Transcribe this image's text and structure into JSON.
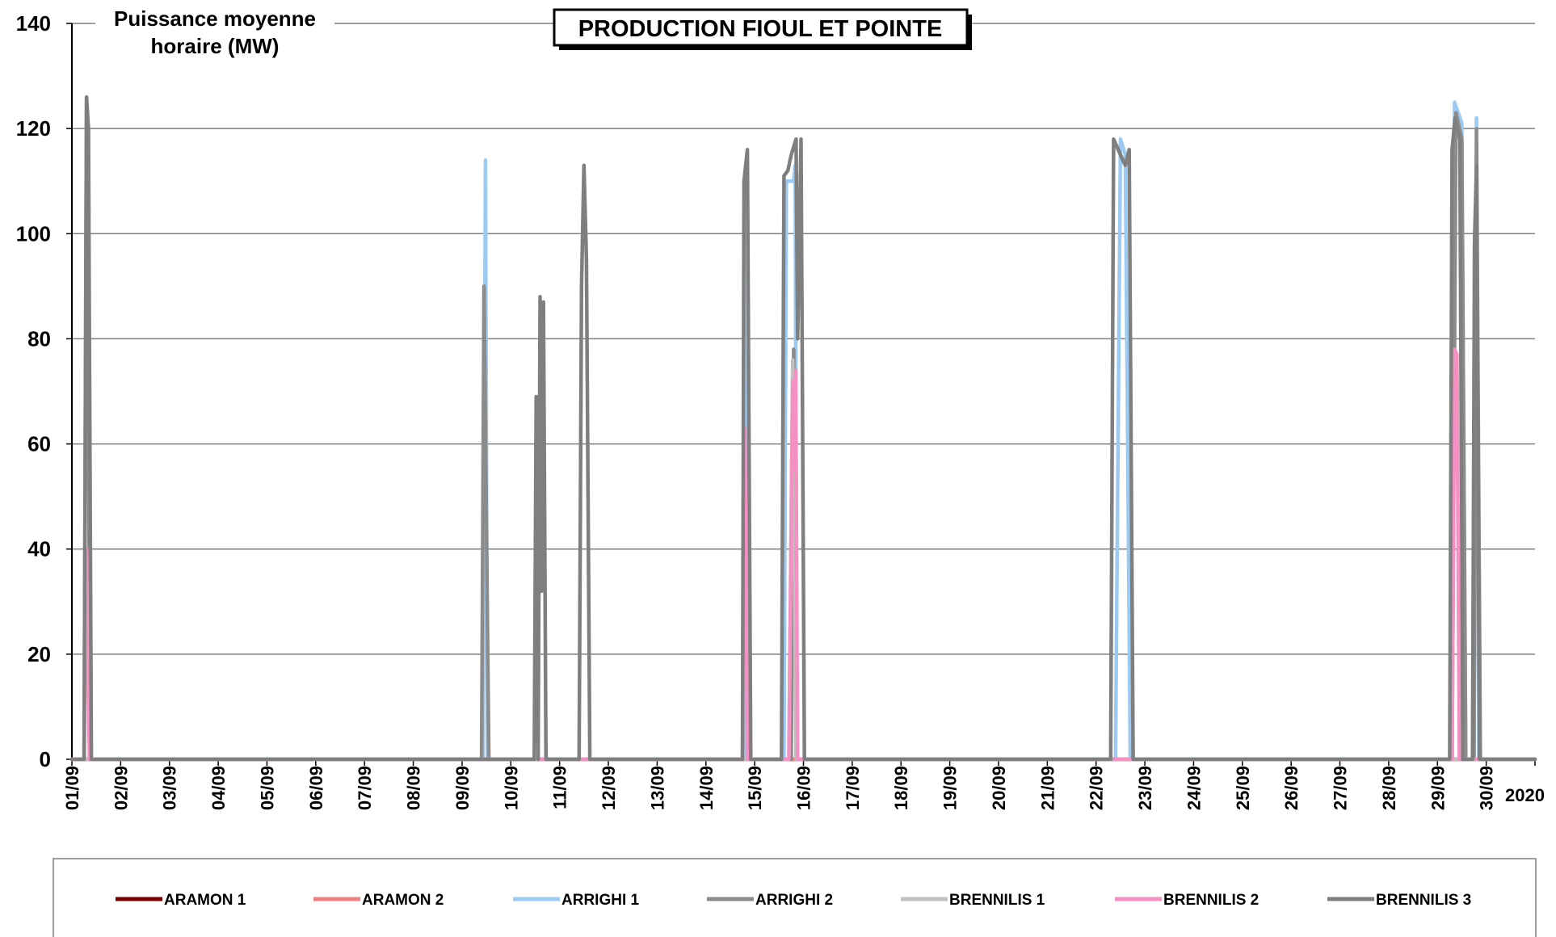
{
  "chart_data": {
    "type": "line",
    "title": "PRODUCTION FIOUL ET POINTE",
    "ylabel_lines": [
      "Puissance moyenne",
      "horaire (MW)"
    ],
    "year_label": "2020",
    "ylim": [
      0,
      140
    ],
    "y_ticks": [
      0,
      20,
      40,
      60,
      80,
      100,
      120,
      140
    ],
    "x_range_days": [
      1,
      31
    ],
    "x_tick_labels": [
      "01/09",
      "02/09",
      "03/09",
      "04/09",
      "05/09",
      "06/09",
      "07/09",
      "08/09",
      "09/09",
      "10/09",
      "11/09",
      "12/09",
      "13/09",
      "14/09",
      "15/09",
      "16/09",
      "17/09",
      "18/09",
      "19/09",
      "20/09",
      "21/09",
      "22/09",
      "23/09",
      "24/09",
      "25/09",
      "26/09",
      "27/09",
      "28/09",
      "29/09",
      "30/09"
    ],
    "grid": true,
    "legend_position": "bottom",
    "series": [
      {
        "name": "ARAMON 1",
        "color": "#7a0000",
        "points": [
          [
            1,
            0
          ],
          [
            31,
            0
          ]
        ]
      },
      {
        "name": "ARAMON 2",
        "color": "#f08080",
        "points": [
          [
            1,
            0
          ],
          [
            15.7,
            0
          ],
          [
            15.72,
            0
          ],
          [
            15.9,
            0
          ],
          [
            31,
            0
          ]
        ]
      },
      {
        "name": "ARRIGHI 1",
        "color": "#9ccaf2",
        "points": [
          [
            1,
            0
          ],
          [
            9.43,
            0
          ],
          [
            9.48,
            114
          ],
          [
            9.52,
            0
          ],
          [
            14.8,
            0
          ],
          [
            14.85,
            110
          ],
          [
            14.9,
            0
          ],
          [
            15.6,
            0
          ],
          [
            15.65,
            110
          ],
          [
            15.8,
            110
          ],
          [
            15.83,
            113
          ],
          [
            15.87,
            0
          ],
          [
            22.4,
            0
          ],
          [
            22.5,
            118
          ],
          [
            22.6,
            115
          ],
          [
            22.7,
            0
          ],
          [
            29.3,
            0
          ],
          [
            29.35,
            125
          ],
          [
            29.5,
            121
          ],
          [
            29.58,
            0
          ],
          [
            29.75,
            0
          ],
          [
            29.8,
            122
          ],
          [
            29.85,
            0
          ],
          [
            31,
            0
          ]
        ]
      },
      {
        "name": "ARRIGHI 2",
        "color": "#8c8c8c",
        "points": [
          [
            1,
            0
          ],
          [
            1.25,
            0
          ],
          [
            1.3,
            125
          ],
          [
            1.38,
            0
          ],
          [
            9.4,
            0
          ],
          [
            9.45,
            90
          ],
          [
            9.55,
            0
          ],
          [
            15.75,
            0
          ],
          [
            15.8,
            78
          ],
          [
            15.85,
            0
          ],
          [
            29.3,
            0
          ],
          [
            29.38,
            123
          ],
          [
            29.5,
            118
          ],
          [
            29.58,
            0
          ],
          [
            29.75,
            0
          ],
          [
            29.8,
            120
          ],
          [
            29.88,
            0
          ],
          [
            31,
            0
          ]
        ]
      },
      {
        "name": "BRENNILIS 1",
        "color": "#c0c0c0",
        "points": [
          [
            1,
            0
          ],
          [
            15.7,
            0
          ],
          [
            15.78,
            76
          ],
          [
            15.85,
            0
          ],
          [
            31,
            0
          ]
        ]
      },
      {
        "name": "BRENNILIS 2",
        "color": "#f590c3",
        "points": [
          [
            1,
            0
          ],
          [
            1.25,
            0
          ],
          [
            1.3,
            40
          ],
          [
            1.36,
            0
          ],
          [
            14.75,
            0
          ],
          [
            14.8,
            63
          ],
          [
            14.85,
            0
          ],
          [
            15.7,
            0
          ],
          [
            15.78,
            72
          ],
          [
            15.8,
            55
          ],
          [
            15.84,
            74
          ],
          [
            15.88,
            0
          ],
          [
            29.3,
            0
          ],
          [
            29.35,
            78
          ],
          [
            29.4,
            77
          ],
          [
            29.45,
            0
          ],
          [
            31,
            0
          ]
        ]
      },
      {
        "name": "BRENNILIS 3",
        "color": "#7f7f7f",
        "points": [
          [
            1,
            0
          ],
          [
            1.25,
            0
          ],
          [
            1.3,
            126
          ],
          [
            1.34,
            120
          ],
          [
            1.4,
            0
          ],
          [
            10.48,
            0
          ],
          [
            10.52,
            69
          ],
          [
            10.56,
            0
          ],
          [
            10.6,
            88
          ],
          [
            10.63,
            32
          ],
          [
            10.67,
            87
          ],
          [
            10.72,
            0
          ],
          [
            11.4,
            0
          ],
          [
            11.45,
            90
          ],
          [
            11.5,
            113
          ],
          [
            11.55,
            95
          ],
          [
            11.62,
            0
          ],
          [
            14.75,
            0
          ],
          [
            14.78,
            110
          ],
          [
            14.85,
            116
          ],
          [
            14.92,
            0
          ],
          [
            15.55,
            0
          ],
          [
            15.6,
            111
          ],
          [
            15.68,
            112
          ],
          [
            15.75,
            115
          ],
          [
            15.85,
            118
          ],
          [
            15.88,
            80
          ],
          [
            15.95,
            118
          ],
          [
            16.02,
            0
          ],
          [
            22.3,
            0
          ],
          [
            22.36,
            118
          ],
          [
            22.5,
            115
          ],
          [
            22.6,
            113
          ],
          [
            22.68,
            116
          ],
          [
            22.76,
            0
          ],
          [
            29.25,
            0
          ],
          [
            29.3,
            116
          ],
          [
            29.36,
            122
          ],
          [
            29.46,
            118
          ],
          [
            29.52,
            0
          ],
          [
            29.72,
            0
          ],
          [
            29.76,
            98
          ],
          [
            29.8,
            113
          ],
          [
            29.86,
            0
          ],
          [
            31,
            0
          ]
        ]
      }
    ]
  }
}
